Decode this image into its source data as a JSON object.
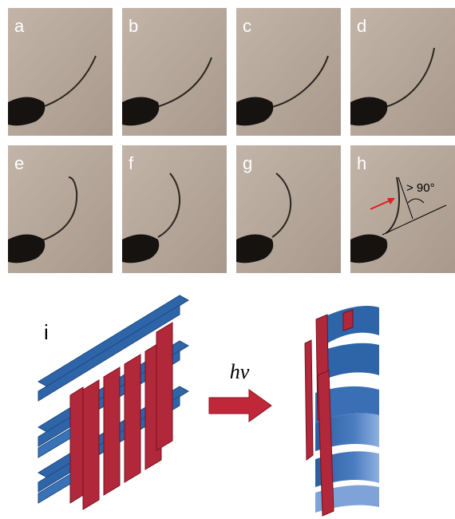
{
  "panels": [
    {
      "label": "a"
    },
    {
      "label": "b"
    },
    {
      "label": "c"
    },
    {
      "label": "d"
    },
    {
      "label": "e"
    },
    {
      "label": "f"
    },
    {
      "label": "g"
    },
    {
      "label": "h"
    }
  ],
  "annotation": "> 90°",
  "diagram": {
    "label": "i",
    "arrow_label": "hν"
  }
}
